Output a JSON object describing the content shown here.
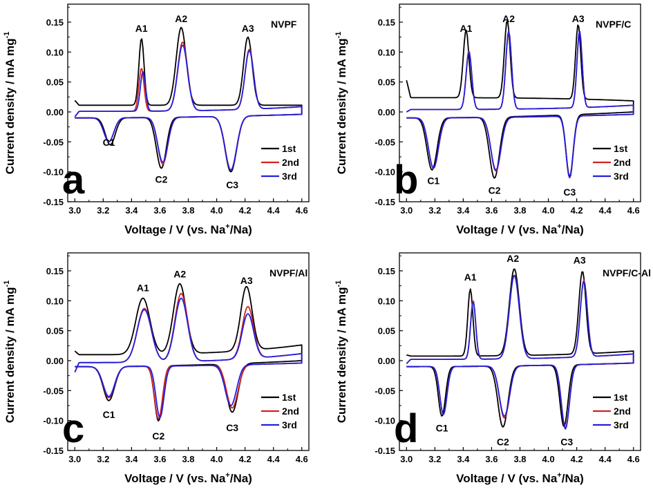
{
  "figure": {
    "panels": [
      {
        "letter": "a",
        "sample": "NVPF",
        "xlabel": "Voltage / V (vs. Na+/Na)",
        "ylabel": "Current density / mA mg-1",
        "xticks": [
          "3.0",
          "3.2",
          "3.4",
          "3.6",
          "3.8",
          "4.0",
          "4.2",
          "4.4",
          "4.6"
        ],
        "yticks": [
          "-0.15",
          "-0.10",
          "-0.05",
          "0.00",
          "0.05",
          "0.10",
          "0.15"
        ],
        "peaks": [
          {
            "label": "A1",
            "x": 3.47,
            "y": 0.134
          },
          {
            "label": "A2",
            "x": 3.75,
            "y": 0.15
          },
          {
            "label": "A3",
            "x": 4.22,
            "y": 0.134
          },
          {
            "label": "C1",
            "x": 3.24,
            "y": -0.045
          },
          {
            "label": "C2",
            "x": 3.61,
            "y": -0.107
          },
          {
            "label": "C3",
            "x": 4.11,
            "y": -0.116
          }
        ],
        "legend": [
          "1st",
          "2nd",
          "3rd"
        ]
      },
      {
        "letter": "b",
        "sample": "NVPF/C",
        "xlabel": "Voltage / V (vs. Na+/Na)",
        "ylabel": "Current density / mA mg-1",
        "xticks": [
          "3.0",
          "3.2",
          "3.4",
          "3.6",
          "3.8",
          "4.0",
          "4.2",
          "4.4",
          "4.6"
        ],
        "yticks": [
          "-0.15",
          "-0.10",
          "-0.05",
          "0.00",
          "0.05",
          "0.10",
          "0.15"
        ],
        "peaks": [
          {
            "label": "A1",
            "x": 3.42,
            "y": 0.134
          },
          {
            "label": "A2",
            "x": 3.72,
            "y": 0.15
          },
          {
            "label": "A3",
            "x": 4.21,
            "y": 0.15
          },
          {
            "label": "C1",
            "x": 3.19,
            "y": -0.109
          },
          {
            "label": "C2",
            "x": 3.62,
            "y": -0.125
          },
          {
            "label": "C3",
            "x": 4.15,
            "y": -0.128
          }
        ],
        "legend": [
          "1st",
          "2nd",
          "3rd"
        ]
      },
      {
        "letter": "c",
        "sample": "NVPF/Al",
        "xlabel": "Voltage / V (vs. Na+/Na)",
        "ylabel": "Current density / mA mg-1",
        "xticks": [
          "3.0",
          "3.2",
          "3.4",
          "3.6",
          "3.8",
          "4.0",
          "4.2",
          "4.4",
          "4.6"
        ],
        "yticks": [
          "-0.15",
          "-0.10",
          "-0.05",
          "0.00",
          "0.05",
          "0.10",
          "0.15"
        ],
        "peaks": [
          {
            "label": "A1",
            "x": 3.48,
            "y": 0.116
          },
          {
            "label": "A2",
            "x": 3.74,
            "y": 0.139
          },
          {
            "label": "A3",
            "x": 4.21,
            "y": 0.128
          },
          {
            "label": "C1",
            "x": 3.24,
            "y": -0.084
          },
          {
            "label": "C2",
            "x": 3.59,
            "y": -0.12
          },
          {
            "label": "C3",
            "x": 4.11,
            "y": -0.106
          }
        ],
        "legend": [
          "1st",
          "2nd",
          "3rd"
        ]
      },
      {
        "letter": "d",
        "sample": "NVPF/C-Al",
        "xlabel": "Voltage / V (vs. Na+/Na)",
        "ylabel": "Current density / mA mg-1",
        "xticks": [
          "3.0",
          "3.2",
          "3.4",
          "3.6",
          "3.8",
          "4.0",
          "4.2",
          "4.4",
          "4.6"
        ],
        "yticks": [
          "-0.15",
          "-0.10",
          "-0.05",
          "0.00",
          "0.05",
          "0.10",
          "0.15"
        ],
        "peaks": [
          {
            "label": "A1",
            "x": 3.45,
            "y": 0.134
          },
          {
            "label": "A2",
            "x": 3.75,
            "y": 0.165
          },
          {
            "label": "A3",
            "x": 4.22,
            "y": 0.162
          },
          {
            "label": "C1",
            "x": 3.25,
            "y": -0.107
          },
          {
            "label": "C2",
            "x": 3.68,
            "y": -0.13
          },
          {
            "label": "C3",
            "x": 4.13,
            "y": -0.13
          }
        ],
        "legend": [
          "1st",
          "2nd",
          "3rd"
        ]
      }
    ]
  },
  "chart_data": [
    {
      "type": "line",
      "panel": "a",
      "title": "NVPF",
      "xlabel": "Voltage / V (vs. Na+/Na)",
      "ylabel": "Current density / mA mg-1",
      "xlim": [
        2.95,
        4.65
      ],
      "ylim": [
        -0.15,
        0.18
      ],
      "grid": false,
      "legend_position": "bottom-right",
      "series": [
        {
          "name": "1st",
          "color": "#000000",
          "anodic_peaks": [
            [
              3.47,
              0.122
            ],
            [
              3.75,
              0.14
            ],
            [
              4.22,
              0.124
            ]
          ],
          "cathodic_peaks": [
            [
              3.25,
              -0.055
            ],
            [
              3.61,
              -0.095
            ],
            [
              4.1,
              -0.103
            ]
          ],
          "start": [
            3.0,
            0.012
          ],
          "end": [
            4.6,
            0.012
          ]
        },
        {
          "name": "2nd",
          "color": "#d42020",
          "anodic_peaks": [
            [
              3.47,
              0.082
            ],
            [
              3.76,
              0.125
            ],
            [
              4.23,
              0.11
            ]
          ],
          "cathodic_peaks": [
            [
              3.24,
              -0.05
            ],
            [
              3.62,
              -0.088
            ],
            [
              4.1,
              -0.1
            ]
          ],
          "start": [
            3.0,
            -0.005
          ],
          "end": [
            4.6,
            0.008
          ]
        },
        {
          "name": "3rd",
          "color": "#2020e0",
          "anodic_peaks": [
            [
              3.48,
              0.076
            ],
            [
              3.76,
              0.12
            ],
            [
              4.23,
              0.108
            ]
          ],
          "cathodic_peaks": [
            [
              3.24,
              -0.05
            ],
            [
              3.62,
              -0.085
            ],
            [
              4.1,
              -0.1
            ]
          ],
          "start": [
            3.0,
            -0.005
          ],
          "end": [
            4.6,
            0.008
          ]
        }
      ]
    },
    {
      "type": "line",
      "panel": "b",
      "title": "NVPF/C",
      "xlabel": "Voltage / V (vs. Na+/Na)",
      "ylabel": "Current density / mA mg-1",
      "xlim": [
        2.95,
        4.65
      ],
      "ylim": [
        -0.15,
        0.18
      ],
      "grid": false,
      "legend_position": "bottom-right",
      "series": [
        {
          "name": "1st",
          "color": "#000000",
          "anodic_peaks": [
            [
              3.42,
              0.123
            ],
            [
              3.71,
              0.14
            ],
            [
              4.21,
              0.135
            ]
          ],
          "cathodic_peaks": [
            [
              3.18,
              -0.097
            ],
            [
              3.62,
              -0.112
            ],
            [
              4.15,
              -0.113
            ]
          ],
          "start": [
            3.0,
            0.033
          ],
          "end": [
            4.6,
            0.024
          ]
        },
        {
          "name": "2nd",
          "color": "#d42020",
          "anodic_peaks": [
            [
              3.44,
              0.108
            ],
            [
              3.72,
              0.138
            ],
            [
              4.22,
              0.138
            ]
          ],
          "cathodic_peaks": [
            [
              3.19,
              -0.094
            ],
            [
              3.63,
              -0.1
            ],
            [
              4.15,
              -0.113
            ]
          ],
          "start": [
            3.0,
            0.0
          ],
          "end": [
            4.6,
            0.012
          ]
        },
        {
          "name": "3rd",
          "color": "#2020e0",
          "anodic_peaks": [
            [
              3.44,
              0.106
            ],
            [
              3.72,
              0.141
            ],
            [
              4.22,
              0.138
            ]
          ],
          "cathodic_peaks": [
            [
              3.19,
              -0.094
            ],
            [
              3.63,
              -0.098
            ],
            [
              4.15,
              -0.113
            ]
          ],
          "start": [
            3.0,
            0.0
          ],
          "end": [
            4.6,
            0.012
          ]
        }
      ]
    },
    {
      "type": "line",
      "panel": "c",
      "title": "NVPF/Al",
      "xlabel": "Voltage / V (vs. Na+/Na)",
      "ylabel": "Current density / mA mg-1",
      "xlim": [
        2.95,
        4.65
      ],
      "ylim": [
        -0.15,
        0.18
      ],
      "grid": false,
      "legend_position": "bottom-right",
      "series": [
        {
          "name": "1st",
          "color": "#000000",
          "anodic_peaks": [
            [
              3.48,
              0.104
            ],
            [
              3.74,
              0.127
            ],
            [
              4.21,
              0.117
            ]
          ],
          "cathodic_peaks": [
            [
              3.24,
              -0.067
            ],
            [
              3.59,
              -0.102
            ],
            [
              4.11,
              -0.091
            ]
          ],
          "start": [
            3.0,
            0.01
          ],
          "end": [
            4.6,
            0.037
          ]
        },
        {
          "name": "2nd",
          "color": "#d42020",
          "anodic_peaks": [
            [
              3.49,
              0.1
            ],
            [
              3.75,
              0.124
            ],
            [
              4.22,
              0.097
            ]
          ],
          "cathodic_peaks": [
            [
              3.24,
              -0.062
            ],
            [
              3.59,
              -0.098
            ],
            [
              4.11,
              -0.082
            ]
          ],
          "start": [
            3.0,
            -0.012
          ],
          "end": [
            4.6,
            0.013
          ]
        },
        {
          "name": "3rd",
          "color": "#2020e0",
          "anodic_peaks": [
            [
              3.49,
              0.098
            ],
            [
              3.75,
              0.116
            ],
            [
              4.22,
              0.085
            ]
          ],
          "cathodic_peaks": [
            [
              3.24,
              -0.06
            ],
            [
              3.6,
              -0.096
            ],
            [
              4.1,
              -0.078
            ]
          ],
          "start": [
            3.0,
            -0.012
          ],
          "end": [
            4.6,
            0.013
          ]
        }
      ]
    },
    {
      "type": "line",
      "panel": "d",
      "title": "NVPF/C-Al",
      "xlabel": "Voltage / V (vs. Na+/Na)",
      "ylabel": "Current density / mA mg-1",
      "xlim": [
        2.95,
        4.65
      ],
      "ylim": [
        -0.15,
        0.18
      ],
      "grid": false,
      "legend_position": "bottom-right",
      "series": [
        {
          "name": "1st",
          "color": "#000000",
          "anodic_peaks": [
            [
              3.45,
              0.122
            ],
            [
              3.76,
              0.155
            ],
            [
              4.24,
              0.148
            ]
          ],
          "cathodic_peaks": [
            [
              3.25,
              -0.093
            ],
            [
              3.68,
              -0.112
            ],
            [
              4.11,
              -0.113
            ]
          ],
          "start": [
            3.0,
            0.006
          ],
          "end": [
            4.6,
            0.02
          ]
        },
        {
          "name": "2nd",
          "color": "#d42020",
          "anodic_peaks": [
            [
              3.47,
              0.108
            ],
            [
              3.76,
              0.15
            ],
            [
              4.25,
              0.138
            ]
          ],
          "cathodic_peaks": [
            [
              3.26,
              -0.09
            ],
            [
              3.69,
              -0.097
            ],
            [
              4.12,
              -0.115
            ]
          ],
          "start": [
            3.0,
            -0.003
          ],
          "end": [
            4.6,
            0.012
          ]
        },
        {
          "name": "3rd",
          "color": "#2020e0",
          "anodic_peaks": [
            [
              3.47,
              0.106
            ],
            [
              3.76,
              0.149
            ],
            [
              4.25,
              0.136
            ]
          ],
          "cathodic_peaks": [
            [
              3.26,
              -0.09
            ],
            [
              3.69,
              -0.094
            ],
            [
              4.12,
              -0.117
            ]
          ],
          "start": [
            3.0,
            -0.003
          ],
          "end": [
            4.6,
            0.012
          ]
        }
      ]
    }
  ]
}
